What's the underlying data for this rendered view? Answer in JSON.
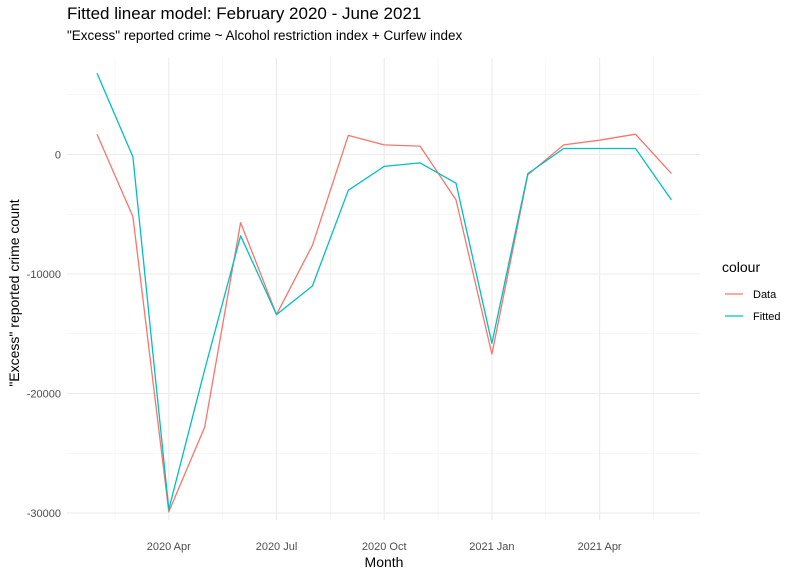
{
  "chart_data": {
    "type": "line",
    "title": "Fitted linear model: February 2020 - June 2021",
    "subtitle": "\"Excess\" reported crime ~ Alcohol restriction index + Curfew index",
    "xlabel": "Month",
    "ylabel": "\"Excess\" reported crime count",
    "x": [
      "2020-02",
      "2020-03",
      "2020-04",
      "2020-05",
      "2020-06",
      "2020-07",
      "2020-08",
      "2020-09",
      "2020-10",
      "2020-11",
      "2020-12",
      "2021-01",
      "2021-02",
      "2021-03",
      "2021-04",
      "2021-05",
      "2021-06"
    ],
    "x_ticks": [
      "2020 Apr",
      "2020 Jul",
      "2020 Oct",
      "2021 Jan",
      "2021 Apr"
    ],
    "y_ticks": [
      "-30000",
      "-20000",
      "-10000",
      "0"
    ],
    "ylim": [
      -30600,
      8000
    ],
    "grid": true,
    "legend": {
      "title": "colour",
      "position": "right"
    },
    "series": [
      {
        "name": "Data",
        "color": "#F8766D",
        "values": [
          1700,
          -5200,
          -29900,
          -22800,
          -5700,
          -13400,
          -7600,
          1600,
          800,
          700,
          -3800,
          -16700,
          -1700,
          800,
          1200,
          1700,
          -1600
        ]
      },
      {
        "name": "Fitted",
        "color": "#00BFC4",
        "values": [
          6800,
          -200,
          -29700,
          -18000,
          -6800,
          -13400,
          -11000,
          -3000,
          -1000,
          -700,
          -2400,
          -15800,
          -1600,
          500,
          500,
          500,
          -3800
        ]
      }
    ]
  }
}
